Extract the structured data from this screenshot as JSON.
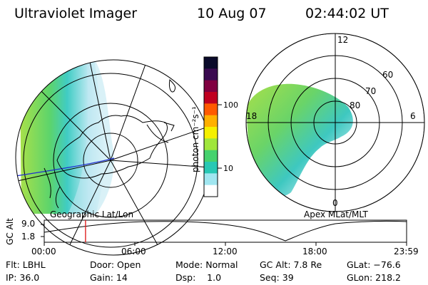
{
  "header": {
    "title": "Ultraviolet Imager",
    "date": "10 Aug 07",
    "time": "02:44:02 UT"
  },
  "left_panel": {
    "caption": "Geographic Lat/Lon"
  },
  "right_panel": {
    "caption": "Apex  MLat/MLT",
    "mlt_labels": [
      "12",
      "18",
      "6",
      "0"
    ],
    "lat_labels": [
      "60",
      "70",
      "80"
    ]
  },
  "colorbar": {
    "unit_label": "photon cm⁻²s⁻¹",
    "ticks": [
      "100",
      "10"
    ],
    "colors": [
      "#0a0a2a",
      "#3a0a50",
      "#800040",
      "#c00020",
      "#ff5a00",
      "#ffb000",
      "#f5f000",
      "#a0e63c",
      "#46d26e",
      "#28c8b4",
      "#a0e6f0",
      "#ffffff"
    ]
  },
  "timeline": {
    "ylabel": "GC Alt",
    "ytick_top": "9.0",
    "ytick_bottom": "1.8",
    "ticks": [
      "00:00",
      "06:00",
      "12:00",
      "18:00",
      "23:59"
    ],
    "marker_time_fraction": 0.114
  },
  "info": {
    "flt": "Flt: LBHL",
    "door": "Door: Open",
    "mode": "Mode: Normal",
    "gcalt": "GC Alt: 7.8 Re",
    "glat": "GLat: −76.6",
    "ip": "IP: 36.0",
    "gain": "Gain: 14",
    "dsp": "Dsp:    1.0",
    "seq": "Seq: 39",
    "glon": "GLon: 218.2"
  }
}
